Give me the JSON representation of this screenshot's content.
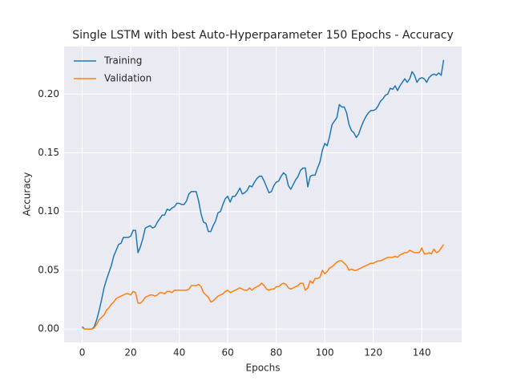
{
  "chart_data": {
    "type": "line",
    "title": "Single LSTM with best Auto-Hyperparameter 150 Epochs - Accuracy",
    "x_label": "Epochs",
    "y_label": "Accuracy",
    "x": [
      0,
      1,
      2,
      3,
      4,
      5,
      6,
      7,
      8,
      9,
      10,
      11,
      12,
      13,
      14,
      15,
      16,
      17,
      18,
      19,
      20,
      21,
      22,
      23,
      24,
      25,
      26,
      27,
      28,
      29,
      30,
      31,
      32,
      33,
      34,
      35,
      36,
      37,
      38,
      39,
      40,
      41,
      42,
      43,
      44,
      45,
      46,
      47,
      48,
      49,
      50,
      51,
      52,
      53,
      54,
      55,
      56,
      57,
      58,
      59,
      60,
      61,
      62,
      63,
      64,
      65,
      66,
      67,
      68,
      69,
      70,
      71,
      72,
      73,
      74,
      75,
      76,
      77,
      78,
      79,
      80,
      81,
      82,
      83,
      84,
      85,
      86,
      87,
      88,
      89,
      90,
      91,
      92,
      93,
      94,
      95,
      96,
      97,
      98,
      99,
      100,
      101,
      102,
      103,
      104,
      105,
      106,
      107,
      108,
      109,
      110,
      111,
      112,
      113,
      114,
      115,
      116,
      117,
      118,
      119,
      120,
      121,
      122,
      123,
      124,
      125,
      126,
      127,
      128,
      129,
      130,
      131,
      132,
      133,
      134,
      135,
      136,
      137,
      138,
      139,
      140,
      141,
      142,
      143,
      144,
      145,
      146,
      147,
      148,
      149
    ],
    "series": [
      {
        "name": "Training",
        "color": "#1f77b4",
        "values": [
          0.002,
          0.0,
          0.0,
          0.0,
          0.0,
          0.002,
          0.008,
          0.016,
          0.025,
          0.035,
          0.042,
          0.048,
          0.054,
          0.062,
          0.067,
          0.072,
          0.073,
          0.078,
          0.078,
          0.078,
          0.079,
          0.084,
          0.084,
          0.065,
          0.07,
          0.077,
          0.086,
          0.087,
          0.088,
          0.086,
          0.087,
          0.091,
          0.094,
          0.097,
          0.097,
          0.102,
          0.101,
          0.103,
          0.104,
          0.107,
          0.107,
          0.106,
          0.106,
          0.109,
          0.115,
          0.117,
          0.117,
          0.117,
          0.109,
          0.098,
          0.091,
          0.09,
          0.083,
          0.083,
          0.088,
          0.092,
          0.099,
          0.1,
          0.106,
          0.111,
          0.113,
          0.108,
          0.113,
          0.113,
          0.116,
          0.12,
          0.115,
          0.116,
          0.118,
          0.122,
          0.121,
          0.125,
          0.128,
          0.13,
          0.13,
          0.126,
          0.121,
          0.116,
          0.117,
          0.122,
          0.125,
          0.126,
          0.13,
          0.133,
          0.131,
          0.122,
          0.119,
          0.123,
          0.127,
          0.13,
          0.135,
          0.137,
          0.137,
          0.121,
          0.13,
          0.131,
          0.131,
          0.137,
          0.142,
          0.152,
          0.158,
          0.156,
          0.164,
          0.174,
          0.177,
          0.18,
          0.191,
          0.189,
          0.189,
          0.184,
          0.174,
          0.169,
          0.167,
          0.163,
          0.166,
          0.172,
          0.177,
          0.181,
          0.184,
          0.186,
          0.186,
          0.187,
          0.19,
          0.194,
          0.196,
          0.199,
          0.2,
          0.205,
          0.204,
          0.207,
          0.203,
          0.207,
          0.21,
          0.213,
          0.21,
          0.213,
          0.219,
          0.216,
          0.21,
          0.213,
          0.214,
          0.213,
          0.21,
          0.214,
          0.216,
          0.217,
          0.216,
          0.218,
          0.216,
          0.229
        ]
      },
      {
        "name": "Validation",
        "color": "#ff7f0e",
        "values": [
          0.001,
          0.0,
          0.0,
          0.0,
          0.0,
          0.001,
          0.004,
          0.008,
          0.01,
          0.012,
          0.016,
          0.018,
          0.021,
          0.023,
          0.026,
          0.027,
          0.028,
          0.029,
          0.03,
          0.03,
          0.029,
          0.032,
          0.031,
          0.022,
          0.022,
          0.024,
          0.027,
          0.028,
          0.029,
          0.029,
          0.028,
          0.029,
          0.031,
          0.031,
          0.03,
          0.032,
          0.032,
          0.031,
          0.033,
          0.033,
          0.033,
          0.033,
          0.033,
          0.033,
          0.034,
          0.037,
          0.037,
          0.037,
          0.038,
          0.036,
          0.031,
          0.029,
          0.027,
          0.023,
          0.024,
          0.026,
          0.028,
          0.029,
          0.03,
          0.032,
          0.033,
          0.031,
          0.032,
          0.033,
          0.034,
          0.035,
          0.034,
          0.033,
          0.033,
          0.035,
          0.033,
          0.035,
          0.036,
          0.037,
          0.039,
          0.037,
          0.034,
          0.033,
          0.034,
          0.034,
          0.036,
          0.036,
          0.038,
          0.039,
          0.038,
          0.035,
          0.034,
          0.035,
          0.036,
          0.037,
          0.039,
          0.039,
          0.033,
          0.035,
          0.041,
          0.039,
          0.043,
          0.043,
          0.044,
          0.05,
          0.047,
          0.049,
          0.052,
          0.053,
          0.055,
          0.057,
          0.058,
          0.058,
          0.056,
          0.054,
          0.05,
          0.051,
          0.05,
          0.05,
          0.051,
          0.052,
          0.053,
          0.054,
          0.055,
          0.056,
          0.056,
          0.057,
          0.058,
          0.058,
          0.059,
          0.06,
          0.061,
          0.061,
          0.061,
          0.062,
          0.061,
          0.063,
          0.064,
          0.065,
          0.065,
          0.067,
          0.066,
          0.065,
          0.065,
          0.065,
          0.069,
          0.064,
          0.064,
          0.065,
          0.064,
          0.068,
          0.065,
          0.066,
          0.069,
          0.072
        ]
      }
    ],
    "xlim": [
      -7.45,
      156.45
    ],
    "xticks": [
      0,
      20,
      40,
      60,
      80,
      100,
      120,
      140
    ],
    "ylim": [
      -0.01145,
      0.24045
    ],
    "yticks": [
      {
        "value": 0,
        "label": "0.00"
      },
      0.05,
      {
        "value": 0.1,
        "label": "0.10"
      },
      0.15,
      {
        "value": 0.2,
        "label": "0.20"
      }
    ],
    "grid": true,
    "legend": "upper left"
  }
}
